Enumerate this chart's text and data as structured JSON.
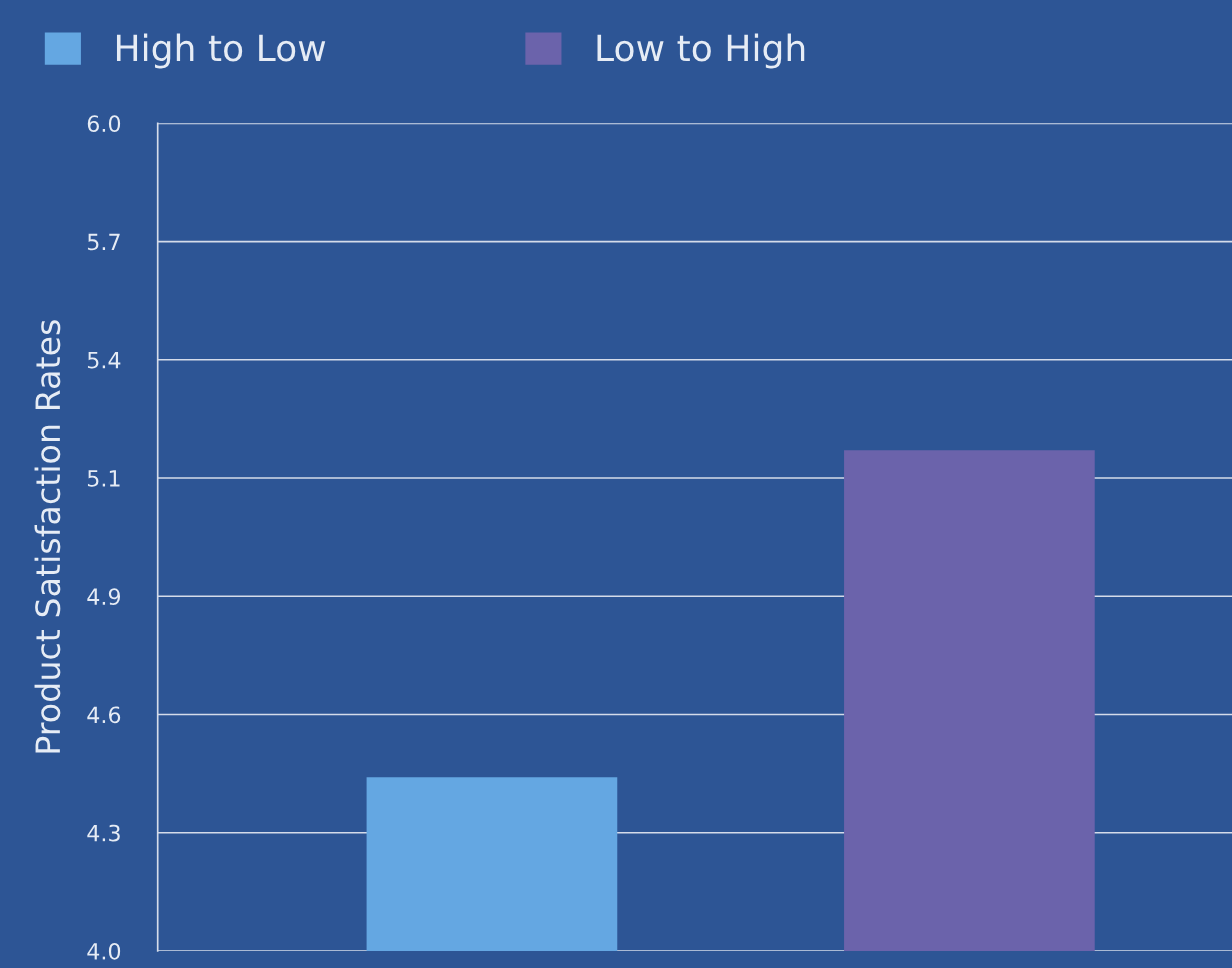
{
  "chart_data": {
    "type": "bar",
    "ylabel": "Product Satisfaction Rates",
    "categories": [
      null,
      null
    ],
    "series": [
      {
        "name": "High to Low",
        "color": "#64a7e2",
        "values": [
          4.42,
          null
        ]
      },
      {
        "name": "Low to High",
        "color": "#6b63ab",
        "values": [
          null,
          5.21
        ]
      }
    ],
    "ylim": [
      4.0,
      6.0
    ],
    "yticks": [
      {
        "value": 4.0,
        "label": "4.0"
      },
      {
        "value": 4.2857,
        "label": "4.3"
      },
      {
        "value": 4.5714,
        "label": "4.6"
      },
      {
        "value": 4.8571,
        "label": "4.9"
      },
      {
        "value": 5.1429,
        "label": "5.1"
      },
      {
        "value": 5.4286,
        "label": "5.4"
      },
      {
        "value": 5.7143,
        "label": "5.7"
      },
      {
        "value": 6.0,
        "label": "6.0"
      }
    ],
    "grid": "y",
    "legend": "top left"
  }
}
